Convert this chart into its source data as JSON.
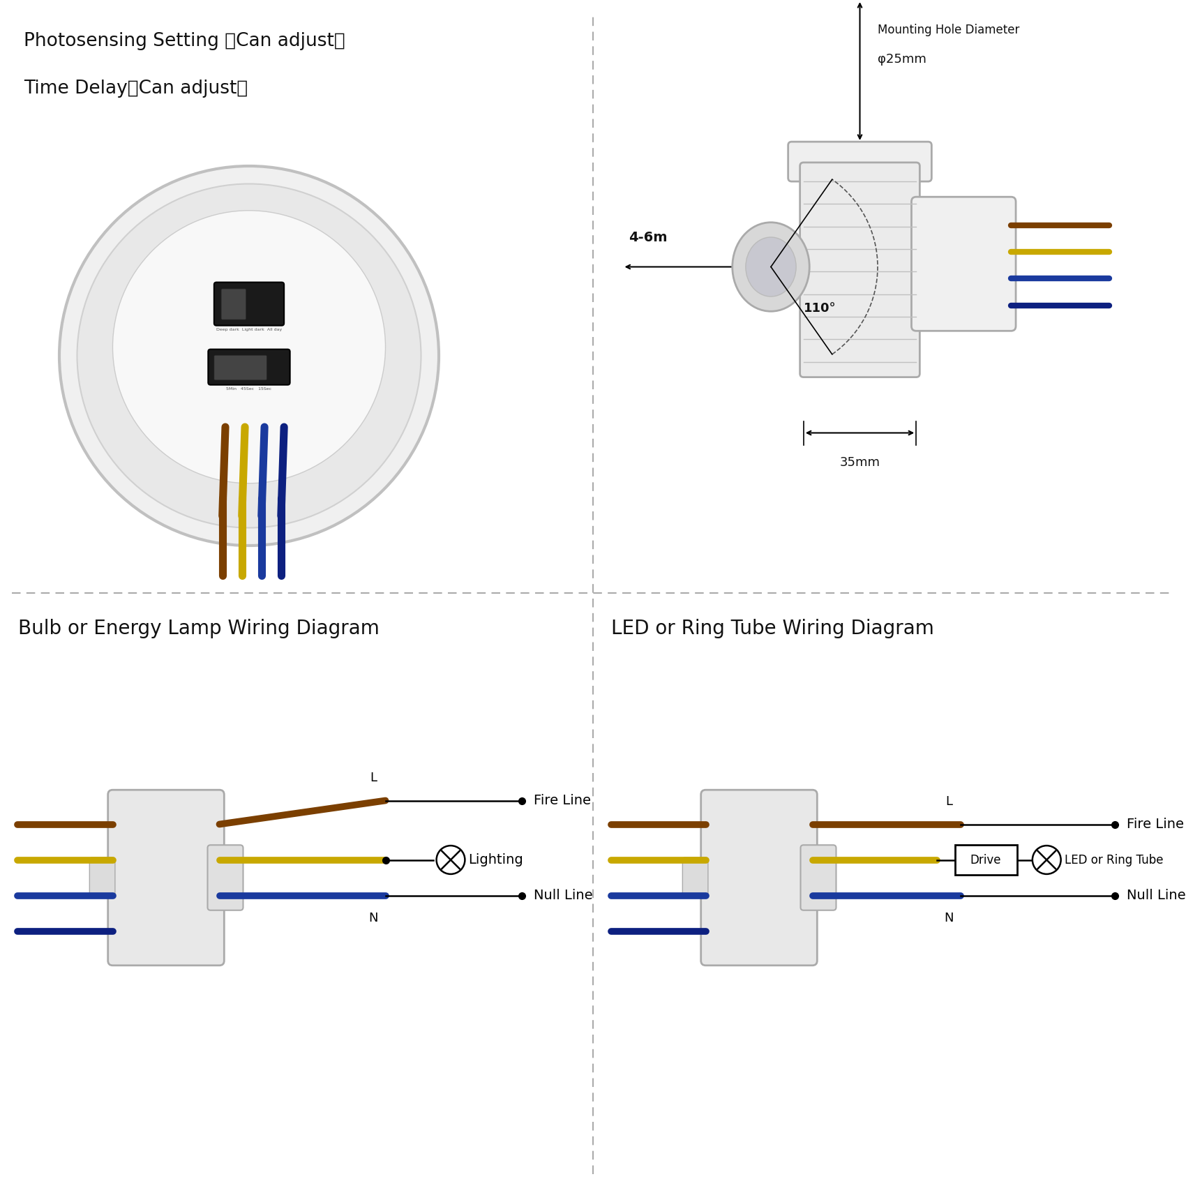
{
  "bg_color": "#ffffff",
  "divider_color": "#aaaaaa",
  "text_color": "#111111",
  "top_left": {
    "title_line1": "Photosensing Setting （Can adjust）",
    "title_line2": "Time Delay（Can adjust）"
  },
  "top_right": {
    "label_mounting": "Mounting Hole Diameter",
    "label_phi": "φ25mm",
    "label_distance": "4-6m",
    "label_angle": "110°",
    "label_width": "35mm"
  },
  "bottom_left": {
    "title": "Bulb or Energy Lamp Wiring Diagram",
    "label_L": "L",
    "label_N": "N",
    "label_fire": "Fire Line",
    "label_lighting": "Lighting",
    "label_null": "Null Line"
  },
  "bottom_right": {
    "title": "LED or Ring Tube Wiring Diagram",
    "label_L": "L",
    "label_N": "N",
    "label_fire": "Fire Line",
    "label_led": "LED or Ring Tube",
    "label_null": "Null Line",
    "label_drive": "Drive"
  },
  "wire_brown": "#7B3F00",
  "wire_yellow": "#C8A800",
  "wire_blue1": "#1a3a9e",
  "wire_blue2": "#0d2080"
}
